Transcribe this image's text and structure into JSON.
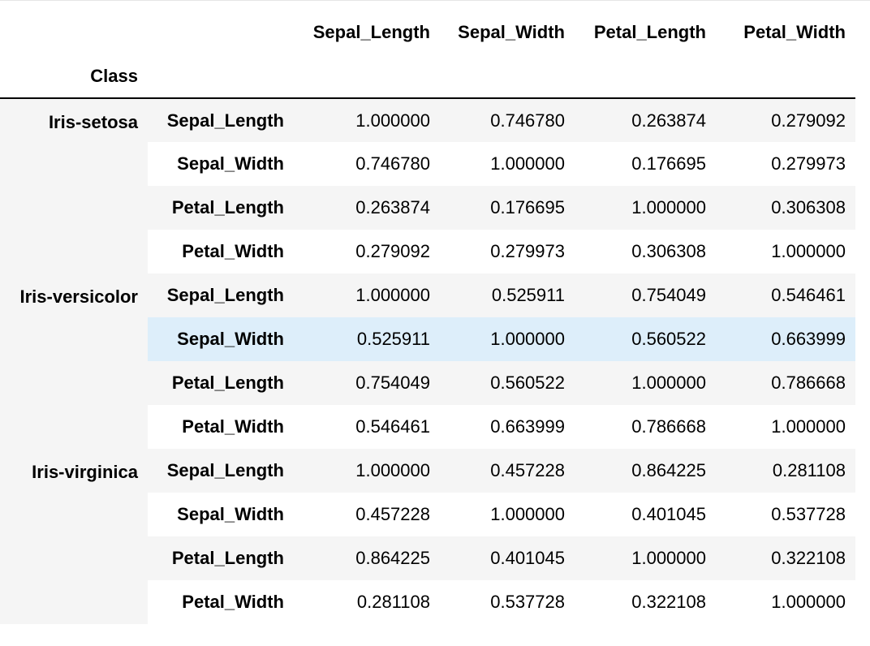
{
  "table": {
    "columns": [
      "Sepal_Length",
      "Sepal_Width",
      "Petal_Length",
      "Petal_Width"
    ],
    "index_name": "Class",
    "groups": [
      {
        "name": "Iris-setosa",
        "rows": [
          {
            "label": "Sepal_Length",
            "values": [
              "1.000000",
              "0.746780",
              "0.263874",
              "0.279092"
            ]
          },
          {
            "label": "Sepal_Width",
            "values": [
              "0.746780",
              "1.000000",
              "0.176695",
              "0.279973"
            ]
          },
          {
            "label": "Petal_Length",
            "values": [
              "0.263874",
              "0.176695",
              "1.000000",
              "0.306308"
            ]
          },
          {
            "label": "Petal_Width",
            "values": [
              "0.279092",
              "0.279973",
              "0.306308",
              "1.000000"
            ]
          }
        ]
      },
      {
        "name": "Iris-versicolor",
        "rows": [
          {
            "label": "Sepal_Length",
            "values": [
              "1.000000",
              "0.525911",
              "0.754049",
              "0.546461"
            ]
          },
          {
            "label": "Sepal_Width",
            "values": [
              "0.525911",
              "1.000000",
              "0.560522",
              "0.663999"
            ]
          },
          {
            "label": "Petal_Length",
            "values": [
              "0.754049",
              "0.560522",
              "1.000000",
              "0.786668"
            ]
          },
          {
            "label": "Petal_Width",
            "values": [
              "0.546461",
              "0.663999",
              "0.786668",
              "1.000000"
            ]
          }
        ]
      },
      {
        "name": "Iris-virginica",
        "rows": [
          {
            "label": "Sepal_Length",
            "values": [
              "1.000000",
              "0.457228",
              "0.864225",
              "0.281108"
            ]
          },
          {
            "label": "Sepal_Width",
            "values": [
              "0.457228",
              "1.000000",
              "0.401045",
              "0.537728"
            ]
          },
          {
            "label": "Petal_Length",
            "values": [
              "0.864225",
              "0.401045",
              "1.000000",
              "0.322108"
            ]
          },
          {
            "label": "Petal_Width",
            "values": [
              "0.281108",
              "0.537728",
              "0.322108",
              "1.000000"
            ]
          }
        ]
      }
    ],
    "highlighted_row": {
      "group": 1,
      "row": 1
    },
    "colors": {
      "stripe": "#f5f5f5",
      "hover": "#ddeefa",
      "header_rule": "#000000"
    }
  }
}
